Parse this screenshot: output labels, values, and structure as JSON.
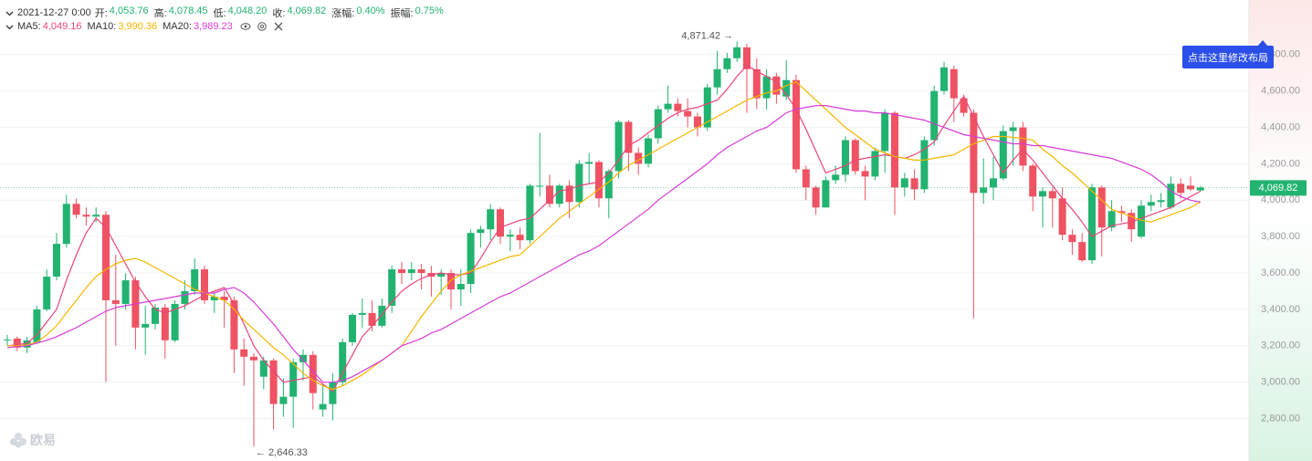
{
  "header": {
    "date": "2021-12-27 0:00",
    "items": [
      {
        "label": "开:",
        "value": "4,053.76"
      },
      {
        "label": "高:",
        "value": "4,078.45"
      },
      {
        "label": "低:",
        "value": "4,048.20"
      },
      {
        "label": "收:",
        "value": "4,069.82"
      },
      {
        "label": "涨幅:",
        "value": "0.40%"
      },
      {
        "label": "振幅:",
        "value": "0.75%"
      }
    ],
    "ma": [
      {
        "label": "MA5:",
        "value": "4,049.16"
      },
      {
        "label": "MA10:",
        "value": "3,990.36"
      },
      {
        "label": "MA20:",
        "value": "3,989.23"
      }
    ]
  },
  "layout_button": "点击这里修改布局",
  "watermark": "欧易",
  "price_tag": "4,069.82",
  "chart_data": {
    "type": "candlestick",
    "up_color": "#21b36f",
    "down_color": "#ef5262",
    "ylim": [
      2582,
      5100
    ],
    "grid": true,
    "yticks": [
      {
        "value": 2800,
        "label": "2,800.00"
      },
      {
        "value": 3000,
        "label": "3,000.00"
      },
      {
        "value": 3200,
        "label": "3,200.00"
      },
      {
        "value": 3400,
        "label": "3,400.00"
      },
      {
        "value": 3600,
        "label": "3,600.00"
      },
      {
        "value": 3800,
        "label": "3,800.00"
      },
      {
        "value": 4000,
        "label": "4,000.00"
      },
      {
        "value": 4200,
        "label": "4,200.00"
      },
      {
        "value": 4400,
        "label": "4,400.00"
      },
      {
        "value": 4600,
        "label": "4,600.00"
      },
      {
        "value": 4800,
        "label": "4,800.00"
      }
    ],
    "open": [
      3230,
      3240,
      3190,
      3220,
      3400,
      3580,
      3760,
      3980,
      3920,
      3910,
      3920,
      3450,
      3430,
      3560,
      3300,
      3320,
      3410,
      3230,
      3430,
      3500,
      3620,
      3450,
      3470,
      3450,
      3180,
      3140,
      3030,
      3120,
      2880,
      2920,
      3110,
      3150,
      2850,
      2880,
      3000,
      3220,
      3370,
      3380,
      3310,
      3420,
      3620,
      3600,
      3620,
      3600,
      3580,
      3600,
      3510,
      3540,
      3820,
      3840,
      3950,
      3800,
      3810,
      3780,
      4080,
      4080,
      3980,
      4080,
      3990,
      4200,
      4210,
      4010,
      4160,
      4430,
      4260,
      4200,
      4340,
      4500,
      4530,
      4490,
      4460,
      4400,
      4620,
      4720,
      4780,
      4840,
      4720,
      4560,
      4680,
      4570,
      4660,
      4170,
      4070,
      3960,
      4110,
      4140,
      4330,
      4160,
      4130,
      4270,
      4480,
      4070,
      4120,
      4060,
      4330,
      4600,
      4720,
      4560,
      4480,
      4040,
      4070,
      4120,
      4380,
      4400,
      4190,
      4020,
      4050,
      4010,
      3810,
      3770,
      3670,
      4070,
      3850,
      3940,
      3930,
      3800,
      3970,
      3990,
      3960,
      4090,
      4080,
      4053.76
    ],
    "high": [
      3260,
      3250,
      3250,
      3420,
      3620,
      3820,
      4030,
      4010,
      3960,
      3960,
      3940,
      3700,
      3600,
      3580,
      3420,
      3430,
      3430,
      3450,
      3560,
      3680,
      3640,
      3490,
      3500,
      3470,
      3240,
      3160,
      3140,
      3130,
      3020,
      3130,
      3180,
      3170,
      2990,
      3050,
      3240,
      3380,
      3460,
      3450,
      3460,
      3640,
      3660,
      3660,
      3650,
      3640,
      3620,
      3620,
      3620,
      3840,
      3860,
      3980,
      3960,
      3840,
      3850,
      4090,
      4370,
      4140,
      4090,
      4110,
      4220,
      4260,
      4220,
      4170,
      4440,
      4440,
      4290,
      4360,
      4520,
      4630,
      4560,
      4560,
      4480,
      4640,
      4820,
      4810,
      4871.42,
      4860,
      4780,
      4720,
      4700,
      4770,
      4690,
      4190,
      4080,
      4130,
      4190,
      4350,
      4340,
      4190,
      4290,
      4500,
      4490,
      4150,
      4170,
      4350,
      4630,
      4760,
      4740,
      4580,
      4500,
      4230,
      4240,
      4410,
      4430,
      4430,
      4200,
      4070,
      4070,
      4070,
      3840,
      3820,
      4090,
      4080,
      4000,
      3970,
      3950,
      4000,
      4030,
      4040,
      4130,
      4120,
      4130,
      4078.45
    ],
    "low": [
      3200,
      3170,
      3160,
      3210,
      3390,
      3560,
      3740,
      3900,
      3860,
      3880,
      3000,
      3200,
      3400,
      3180,
      3150,
      3290,
      3130,
      3220,
      3400,
      3480,
      3430,
      3380,
      3300,
      3050,
      2980,
      2646.33,
      2960,
      2740,
      2810,
      2750,
      3010,
      2850,
      2810,
      2790,
      2980,
      3200,
      3300,
      3280,
      3300,
      3380,
      3540,
      3560,
      3510,
      3470,
      3480,
      3400,
      3420,
      3490,
      3740,
      3780,
      3760,
      3720,
      3730,
      3760,
      4020,
      3960,
      3960,
      3900,
      3960,
      4090,
      3960,
      3900,
      4120,
      4160,
      4140,
      4180,
      4310,
      4480,
      4460,
      4400,
      4350,
      4380,
      4580,
      4700,
      4760,
      4480,
      4500,
      4500,
      4530,
      4550,
      4150,
      4000,
      3920,
      3960,
      4090,
      4100,
      4140,
      4000,
      4110,
      4150,
      3920,
      4020,
      4000,
      4040,
      4300,
      4580,
      4430,
      4460,
      3350,
      3980,
      4000,
      4110,
      4190,
      4160,
      3940,
      3850,
      3850,
      3780,
      3700,
      3660,
      3650,
      3690,
      3830,
      3880,
      3770,
      3790,
      3940,
      3960,
      3950,
      4010,
      4050,
      4048.2
    ],
    "close": [
      3235,
      3190,
      3230,
      3400,
      3580,
      3760,
      3980,
      3920,
      3910,
      3920,
      3450,
      3430,
      3560,
      3300,
      3320,
      3410,
      3230,
      3430,
      3500,
      3620,
      3450,
      3470,
      3450,
      3180,
      3140,
      3120,
      3120,
      2880,
      2920,
      3110,
      3150,
      2940,
      2880,
      3000,
      3220,
      3370,
      3380,
      3310,
      3420,
      3620,
      3600,
      3620,
      3600,
      3580,
      3600,
      3510,
      3540,
      3820,
      3840,
      3950,
      3800,
      3810,
      3780,
      4080,
      4080,
      3980,
      4080,
      3990,
      4200,
      4210,
      4010,
      4160,
      4430,
      4260,
      4200,
      4340,
      4500,
      4530,
      4490,
      4460,
      4400,
      4620,
      4720,
      4780,
      4840,
      4720,
      4560,
      4680,
      4580,
      4660,
      4170,
      4070,
      3960,
      4110,
      4140,
      4330,
      4160,
      4130,
      4270,
      4480,
      4070,
      4120,
      4060,
      4330,
      4600,
      4730,
      4560,
      4480,
      4040,
      4070,
      4120,
      4380,
      4400,
      4190,
      4020,
      4050,
      4010,
      3810,
      3770,
      3670,
      4070,
      3850,
      3940,
      3930,
      3840,
      3970,
      3990,
      4000,
      4090,
      4040,
      4060,
      4069.82
    ],
    "series": [
      {
        "name": "MA5",
        "color": "#e8457a",
        "values": [
          3200,
          3205,
          3215,
          3260,
          3330,
          3400,
          3560,
          3700,
          3820,
          3900,
          3850,
          3750,
          3650,
          3550,
          3470,
          3400,
          3380,
          3400,
          3420,
          3450,
          3480,
          3500,
          3520,
          3430,
          3320,
          3200,
          3120,
          3060,
          3000,
          3010,
          3020,
          3030,
          2990,
          2950,
          3050,
          3150,
          3250,
          3310,
          3370,
          3440,
          3500,
          3540,
          3570,
          3590,
          3600,
          3590,
          3590,
          3600,
          3680,
          3770,
          3850,
          3870,
          3890,
          3900,
          3950,
          4000,
          4050,
          4060,
          4080,
          4090,
          4100,
          4150,
          4220,
          4300,
          4330,
          4370,
          4410,
          4450,
          4480,
          4500,
          4510,
          4530,
          4550,
          4610,
          4680,
          4740,
          4710,
          4680,
          4650,
          4580,
          4500,
          4390,
          4270,
          4150,
          4170,
          4190,
          4220,
          4230,
          4240,
          4250,
          4240,
          4230,
          4250,
          4280,
          4320,
          4410,
          4490,
          4570,
          4460,
          4350,
          4250,
          4150,
          4220,
          4280,
          4220,
          4150,
          4080,
          4010,
          3950,
          3880,
          3800,
          3830,
          3860,
          3870,
          3880,
          3900,
          3920,
          3940,
          3960,
          3990,
          4020,
          4049.16
        ]
      },
      {
        "name": "MA10",
        "color": "#f6b600",
        "values": [
          3200,
          3200,
          3205,
          3220,
          3260,
          3310,
          3380,
          3450,
          3520,
          3580,
          3620,
          3650,
          3670,
          3680,
          3660,
          3630,
          3600,
          3570,
          3540,
          3510,
          3490,
          3470,
          3450,
          3400,
          3340,
          3290,
          3240,
          3190,
          3150,
          3100,
          3050,
          3010,
          2980,
          2960,
          2980,
          3010,
          3040,
          3080,
          3120,
          3160,
          3200,
          3280,
          3360,
          3430,
          3500,
          3560,
          3590,
          3610,
          3630,
          3650,
          3670,
          3690,
          3700,
          3750,
          3800,
          3850,
          3900,
          3940,
          3980,
          4020,
          4060,
          4100,
          4150,
          4190,
          4220,
          4250,
          4280,
          4310,
          4340,
          4370,
          4400,
          4430,
          4460,
          4490,
          4520,
          4550,
          4570,
          4590,
          4600,
          4630,
          4650,
          4600,
          4550,
          4500,
          4450,
          4400,
          4360,
          4320,
          4280,
          4260,
          4240,
          4230,
          4220,
          4220,
          4230,
          4240,
          4250,
          4280,
          4310,
          4330,
          4350,
          4350,
          4345,
          4340,
          4330,
          4280,
          4240,
          4190,
          4150,
          4100,
          4050,
          4000,
          3950,
          3930,
          3910,
          3890,
          3880,
          3900,
          3920,
          3940,
          3960,
          3990.36
        ]
      },
      {
        "name": "MA20",
        "color": "#d63bd8",
        "values": [
          3190,
          3195,
          3200,
          3215,
          3230,
          3250,
          3275,
          3300,
          3330,
          3360,
          3390,
          3410,
          3420,
          3430,
          3440,
          3450,
          3460,
          3470,
          3480,
          3490,
          3490,
          3490,
          3510,
          3520,
          3490,
          3440,
          3380,
          3320,
          3250,
          3180,
          3120,
          3060,
          3000,
          3000,
          3010,
          3030,
          3060,
          3090,
          3120,
          3160,
          3200,
          3220,
          3240,
          3270,
          3290,
          3320,
          3350,
          3380,
          3410,
          3440,
          3470,
          3490,
          3520,
          3550,
          3580,
          3610,
          3640,
          3670,
          3700,
          3720,
          3750,
          3790,
          3830,
          3870,
          3910,
          3950,
          4000,
          4040,
          4080,
          4120,
          4160,
          4200,
          4250,
          4290,
          4320,
          4350,
          4380,
          4400,
          4440,
          4480,
          4500,
          4510,
          4520,
          4520,
          4510,
          4500,
          4490,
          4490,
          4480,
          4480,
          4470,
          4460,
          4450,
          4440,
          4420,
          4400,
          4380,
          4360,
          4350,
          4340,
          4330,
          4320,
          4310,
          4310,
          4300,
          4300,
          4290,
          4280,
          4270,
          4260,
          4250,
          4240,
          4230,
          4210,
          4190,
          4170,
          4140,
          4100,
          4050,
          4020,
          4000,
          3989.23
        ]
      }
    ],
    "annotations": [
      {
        "text": "4,871.42 →",
        "index": 74,
        "value": 4871.42,
        "side": "left"
      },
      {
        "text": "← 2,646.33",
        "index": 25,
        "value": 2646.33,
        "side": "right"
      }
    ]
  }
}
